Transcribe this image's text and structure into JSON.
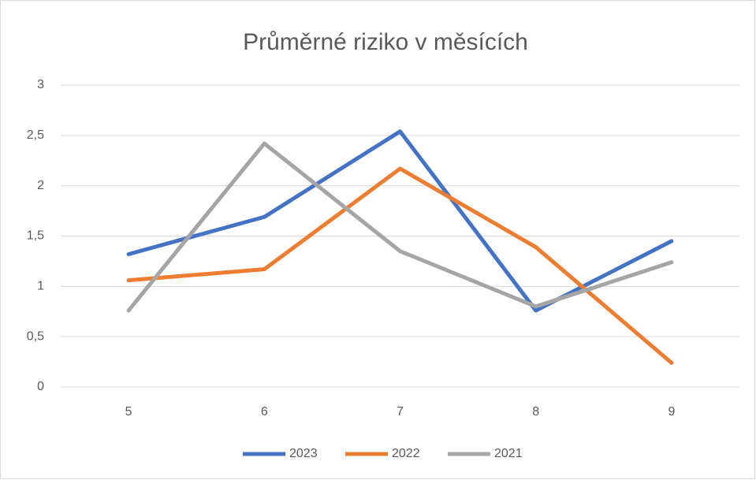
{
  "chart_data": {
    "type": "line",
    "title": "Průměrné riziko v měsících",
    "categories": [
      "5",
      "6",
      "7",
      "8",
      "9"
    ],
    "series": [
      {
        "name": "2023",
        "color": "#4472c4",
        "values": [
          1.32,
          1.69,
          2.54,
          0.76,
          1.45
        ]
      },
      {
        "name": "2022",
        "color": "#ed7d31",
        "values": [
          1.06,
          1.17,
          2.17,
          1.39,
          0.24
        ]
      },
      {
        "name": "2021",
        "color": "#a5a5a5",
        "values": [
          0.76,
          2.42,
          1.35,
          0.8,
          1.24
        ]
      }
    ],
    "ylim": [
      0,
      3
    ],
    "yticks": [
      0,
      {
        "value": 0.5,
        "label": "0,5"
      },
      1,
      {
        "value": 1.5,
        "label": "1,5"
      },
      2,
      {
        "value": 2.5,
        "label": "2,5"
      },
      3
    ],
    "grid": true,
    "legend": "bottom"
  }
}
